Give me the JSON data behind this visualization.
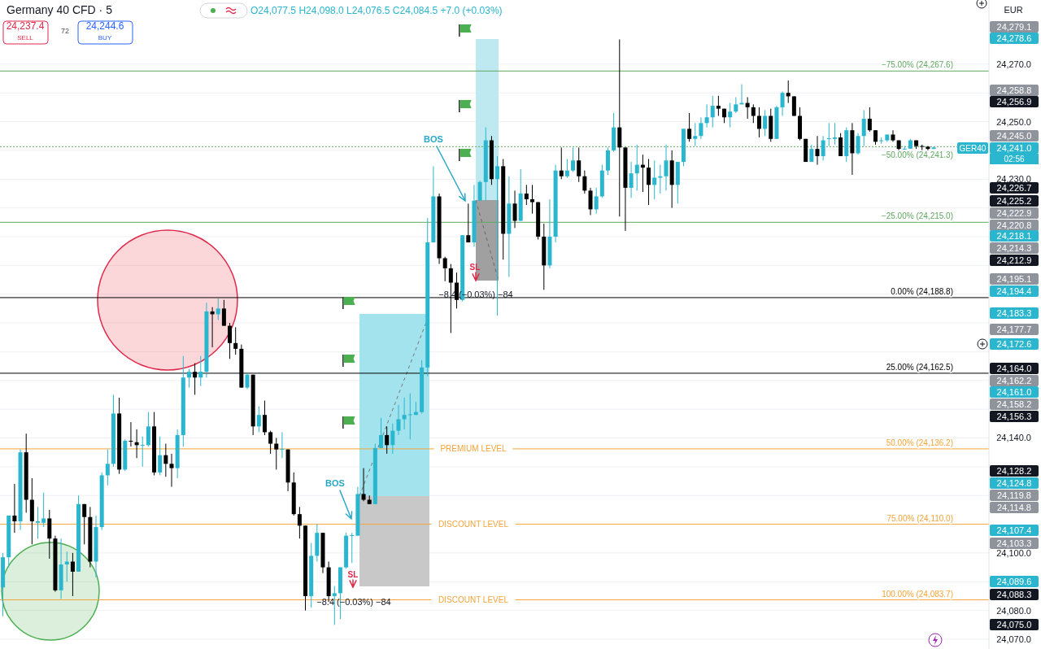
{
  "chart_data": {
    "type": "candlestick",
    "title": "Germany 40 CFD · 5",
    "subtitle": "O24,077.5 H24,098.0 L24,076.5 C24,084.5 +7.0 (+0.03%)",
    "categories": [
      null,
      null,
      null,
      null,
      null,
      null,
      null,
      null,
      null,
      null,
      null,
      null,
      null,
      null,
      null,
      null,
      null,
      null,
      null,
      null,
      null,
      null,
      null,
      null,
      null,
      null,
      null,
      null,
      null,
      null,
      null,
      null,
      null,
      null,
      null,
      null,
      null,
      null,
      null,
      null,
      null,
      null,
      null,
      null,
      null,
      null,
      null,
      null,
      null,
      null,
      null,
      null,
      null,
      null,
      null,
      null,
      null,
      null,
      null,
      null,
      null,
      null,
      null,
      null,
      null,
      null,
      null,
      null,
      null,
      null,
      null,
      null,
      null,
      null,
      null,
      null,
      null,
      null,
      null,
      null,
      null,
      null,
      null,
      null,
      null,
      null,
      null,
      null,
      null,
      null,
      null,
      null,
      null,
      null,
      null,
      null,
      null,
      null,
      null,
      null,
      null,
      null,
      null,
      null,
      null,
      null,
      null,
      null,
      null,
      null,
      null,
      null,
      null,
      null,
      null,
      null,
      null,
      null,
      null,
      null,
      null,
      null,
      null,
      null,
      null,
      null,
      null,
      null,
      null,
      null,
      null,
      null,
      null,
      null,
      null,
      null,
      null,
      null,
      null,
      null,
      null,
      null,
      null,
      null,
      null,
      null,
      null,
      null,
      null,
      null,
      null,
      null,
      null,
      null,
      null,
      null,
      null,
      null,
      null,
      null,
      null,
      null,
      null,
      null,
      null,
      null,
      null,
      null,
      null,
      null
    ],
    "ohlc": [
      [
        24088,
        24100,
        24078,
        24098.5
      ],
      [
        24098.5,
        24113,
        24095,
        24113
      ],
      [
        24113,
        24124,
        24107,
        24111
      ],
      [
        24111,
        24136,
        24108,
        24135
      ],
      [
        24135,
        24141.5,
        24114,
        24118.5
      ],
      [
        24118.5,
        24126,
        24103,
        24111
      ],
      [
        24110.5,
        24116,
        24105,
        24111
      ],
      [
        24110.5,
        24121,
        24109,
        24112
      ],
      [
        24112,
        24115,
        24098,
        24105
      ],
      [
        24105,
        24106,
        24086.5,
        24087
      ],
      [
        24087,
        24105,
        24084,
        24096
      ],
      [
        24096,
        24100.5,
        24090,
        24097
      ],
      [
        24097,
        24100,
        24085,
        24093.5
      ],
      [
        24093.5,
        24120,
        24093.5,
        24117
      ],
      [
        24117,
        24117,
        24103,
        24112.5
      ],
      [
        24112.5,
        24116,
        24095,
        24097
      ],
      [
        24097,
        24113,
        24091.5,
        24109
      ],
      [
        24109,
        24128,
        24108,
        24127
      ],
      [
        24127,
        24136,
        24123.5,
        24131
      ],
      [
        24131,
        24155,
        24130,
        24148.5
      ],
      [
        24148.5,
        24154,
        24127.5,
        24129
      ],
      [
        24129,
        24139.5,
        24128.5,
        24139
      ],
      [
        24139,
        24145.5,
        24137,
        24138.8
      ],
      [
        24138.5,
        24143,
        24133,
        24137.5
      ],
      [
        24137.5,
        24140.5,
        24130,
        24137.6
      ],
      [
        24137.5,
        24149,
        24137,
        24144
      ],
      [
        24144,
        24149,
        24127,
        24128
      ],
      [
        24128,
        24140.5,
        24127,
        24134
      ],
      [
        24134,
        24138,
        24126.5,
        24131
      ],
      [
        24131,
        24134.5,
        24123,
        24129.5
      ],
      [
        24129.5,
        24143,
        24126,
        24141
      ],
      [
        24141,
        24168.5,
        24137,
        24161
      ],
      [
        24161,
        24164,
        24157.5,
        24163
      ],
      [
        24163,
        24166,
        24155,
        24161
      ],
      [
        24161,
        24168.5,
        24158,
        24163
      ],
      [
        24163,
        24187,
        24161,
        24184
      ],
      [
        24184,
        24185.5,
        24171.5,
        24183
      ],
      [
        24183,
        24188.5,
        24181,
        24185
      ],
      [
        24185,
        24188,
        24179,
        24179
      ],
      [
        24179,
        24180,
        24167.5,
        24173
      ],
      [
        24173,
        24178.5,
        24169,
        24171
      ],
      [
        24171,
        24172.5,
        24157.5,
        24157.5
      ],
      [
        24157.5,
        24162.5,
        24157,
        24162
      ],
      [
        24162,
        24162,
        24141,
        24144
      ],
      [
        24144,
        24151,
        24142,
        24148
      ],
      [
        24148,
        24153,
        24141,
        24142
      ],
      [
        24142,
        24142.5,
        24134.5,
        24138
      ],
      [
        24138,
        24140,
        24129,
        24136
      ],
      [
        24136,
        24142,
        24133,
        24136.2
      ],
      [
        24136,
        24136,
        24121.5,
        24124.5
      ],
      [
        24124.5,
        24128,
        24113,
        24113.5
      ],
      [
        24113.5,
        24116,
        24105,
        24109.5
      ],
      [
        24109.5,
        24109.5,
        24080,
        24085
      ],
      [
        24085,
        24103.5,
        24081,
        24099
      ],
      [
        24099,
        24110,
        24097,
        24107
      ],
      [
        24107,
        24107,
        24093,
        24095
      ],
      [
        24095,
        24097,
        24083,
        24085
      ],
      [
        24085,
        24088.5,
        24075,
        24086
      ],
      [
        24086,
        24095,
        24077,
        24095
      ],
      [
        24095,
        24107,
        24094.5,
        24106
      ],
      [
        24106,
        24107,
        24096.5,
        24106.2
      ],
      [
        24106,
        24123,
        24106,
        24120.5
      ],
      [
        24120.5,
        24129.5,
        24118,
        24118.5
      ],
      [
        24118.5,
        24120,
        24117,
        24117
      ],
      [
        24117,
        24138,
        24117,
        24136.5
      ],
      [
        24136.5,
        24147,
        24136.5,
        24141
      ],
      [
        24141,
        24144,
        24134.5,
        24137.5
      ],
      [
        24137.5,
        24145,
        24134.5,
        24142.5
      ],
      [
        24142.5,
        24151.5,
        24141,
        24146.5
      ],
      [
        24146.5,
        24154,
        24143,
        24148
      ],
      [
        24148,
        24155.5,
        24139.5,
        24148.2
      ],
      [
        24148,
        24152.5,
        24148,
        24149
      ],
      [
        24149,
        24167,
        24148.5,
        24164.5
      ],
      [
        24164.5,
        24216.5,
        24161.5,
        24208
      ],
      [
        24208,
        24234.5,
        24208,
        24224
      ],
      [
        24224,
        24225,
        24200.5,
        24202.5
      ],
      [
        24202.5,
        24203,
        24194.5,
        24199
      ],
      [
        24199,
        24200.5,
        24176.5,
        24194
      ],
      [
        24194,
        24197.5,
        24185,
        24188
      ],
      [
        24188,
        24210.5,
        24187.5,
        24210.5
      ],
      [
        24210.5,
        24221.5,
        24208,
        24208
      ],
      [
        24208,
        24228,
        24206.5,
        24222.5
      ],
      [
        24222.5,
        24229.5,
        24222.5,
        24229
      ],
      [
        24229,
        24248,
        24222.5,
        24243.5
      ],
      [
        24243.5,
        24245,
        24228,
        24230
      ],
      [
        24230,
        24238,
        24182.5,
        24234.5
      ],
      [
        24234.5,
        24237,
        24202,
        24211
      ],
      [
        24211,
        24231,
        24196,
        24221.5
      ],
      [
        24221.5,
        24226,
        24213,
        24215.5
      ],
      [
        24215.5,
        24233.5,
        24215.5,
        24225
      ],
      [
        24225,
        24228,
        24221,
        24223
      ],
      [
        24223,
        24228,
        24218,
        24222
      ],
      [
        24222,
        24222,
        24209,
        24210
      ],
      [
        24210,
        24214.5,
        24191.5,
        24200
      ],
      [
        24200,
        24223,
        24199,
        24210
      ],
      [
        24210,
        24235,
        24208,
        24233
      ],
      [
        24233,
        24241,
        24230,
        24231
      ],
      [
        24231,
        24237,
        24230.5,
        24233
      ],
      [
        24233,
        24241,
        24232.5,
        24236.5
      ],
      [
        24236.5,
        24241,
        24229,
        24231
      ],
      [
        24231,
        24233,
        24225,
        24226
      ],
      [
        24226,
        24227,
        24217.5,
        24219.5
      ],
      [
        24219.5,
        24227,
        24218,
        24224
      ],
      [
        24224,
        24235,
        24223.5,
        24233
      ],
      [
        24233,
        24241,
        24231.5,
        24240
      ],
      [
        24240,
        24253,
        24239.5,
        24248
      ],
      [
        24248,
        24278.6,
        24217,
        24241
      ],
      [
        24241,
        24241,
        24212,
        24227
      ],
      [
        24227,
        24236,
        24223.5,
        24232
      ],
      [
        24232,
        24242,
        24226,
        24235
      ],
      [
        24235,
        24238.5,
        24225.5,
        24234
      ],
      [
        24234,
        24237,
        24221,
        24228
      ],
      [
        24228,
        24236.5,
        24223,
        24230.5
      ],
      [
        24230.5,
        24235,
        24225,
        24231
      ],
      [
        24231,
        24242,
        24226,
        24236.5
      ],
      [
        24236.5,
        24240,
        24220,
        24228
      ],
      [
        24228,
        24236,
        24221.5,
        24236
      ],
      [
        24236,
        24247.5,
        24234.5,
        24247.5
      ],
      [
        24247.5,
        24253,
        24243,
        24244
      ],
      [
        24244,
        24249.5,
        24241.5,
        24245
      ],
      [
        24245,
        24251.5,
        24244,
        24249.5
      ],
      [
        24249.5,
        24256,
        24248,
        24251.5
      ],
      [
        24251.5,
        24259,
        24248,
        24255.5
      ],
      [
        24255.5,
        24259,
        24252,
        24254.5
      ],
      [
        24254.5,
        24254.5,
        24249.5,
        24251.5
      ],
      [
        24251.5,
        24256.5,
        24248,
        24253.5
      ],
      [
        24253.5,
        24258.5,
        24253,
        24256
      ],
      [
        24256,
        24263,
        24256,
        24256.5
      ],
      [
        24256.5,
        24258.5,
        24251,
        24255
      ],
      [
        24255,
        24256,
        24249.5,
        24252
      ],
      [
        24252,
        24255,
        24244.5,
        24247.5
      ],
      [
        24247.5,
        24254,
        24245,
        24252
      ],
      [
        24252,
        24254.5,
        24243,
        24244
      ],
      [
        24244,
        24255.5,
        24244,
        24255
      ],
      [
        24255,
        24260.5,
        24252,
        24260
      ],
      [
        24260,
        24264.3,
        24256.5,
        24258.8
      ],
      [
        24258.8,
        24258.8,
        24252,
        24252
      ],
      [
        24252,
        24255,
        24243.5,
        24244
      ],
      [
        24244,
        24244,
        24236,
        24236
      ],
      [
        24236,
        24242,
        24236,
        24240.5
      ],
      [
        24240.5,
        24245,
        24235,
        24238
      ],
      [
        24238,
        24245,
        24236.5,
        24243.5
      ],
      [
        24244,
        24249.5,
        24241.5,
        24244.2
      ],
      [
        24244,
        24249.5,
        24242,
        24244.5
      ],
      [
        24244.5,
        24246,
        24238,
        24238
      ],
      [
        24238,
        24248,
        24236,
        24247
      ],
      [
        24247,
        24249.5,
        24231.5,
        24239
      ],
      [
        24239,
        24246,
        24238.5,
        24245
      ],
      [
        24245,
        24254,
        24241.5,
        24251
      ],
      [
        24251,
        24255,
        24246.5,
        24247
      ],
      [
        24247,
        24247,
        24242,
        24243
      ],
      [
        24243.3,
        24244.5,
        24242.3,
        24243.5
      ],
      [
        24243.5,
        24245.5,
        24243,
        24245.5
      ],
      [
        24245.5,
        24247,
        24243,
        24243.5
      ],
      [
        24243.5,
        24243.5,
        24240,
        24240.5
      ],
      [
        24240.5,
        24241.5,
        24240.2,
        24240.6
      ],
      [
        24240.6,
        24244,
        24240.5,
        24243.5
      ],
      [
        24243.5,
        24243.5,
        24240.5,
        24241.5
      ],
      [
        24241.5,
        24242,
        24240,
        24241.3
      ],
      [
        24241.3,
        24241.5,
        24240,
        24240.5
      ],
      [
        24240.5,
        24241.3,
        24240.5,
        24241
      ],
      null,
      null,
      null,
      null,
      null,
      null,
      null,
      null,
      null
    ],
    "colors": [
      "#29b6ce",
      "#29b6ce",
      "#000000",
      "#29b6ce",
      "#000000",
      "#000000",
      "#29b6ce",
      "#29b6ce",
      "#000000",
      "#000000",
      "#29b6ce",
      "#29b6ce",
      "#000000",
      "#29b6ce",
      "#000000",
      "#000000",
      "#29b6ce",
      "#29b6ce",
      "#29b6ce",
      "#29b6ce",
      "#000000",
      "#29b6ce",
      "#000000",
      "#000000",
      "#29b6ce",
      "#29b6ce",
      "#000000",
      "#29b6ce",
      "#000000",
      "#000000",
      "#29b6ce",
      "#29b6ce",
      "#29b6ce",
      "#000000",
      "#29b6ce",
      "#29b6ce",
      "#000000",
      "#29b6ce",
      "#000000",
      "#000000",
      "#000000",
      "#000000",
      "#29b6ce",
      "#000000",
      "#29b6ce",
      "#000000",
      "#000000",
      "#000000",
      "#29b6ce",
      "#000000",
      "#000000",
      "#000000",
      "#000000",
      "#29b6ce",
      "#29b6ce",
      "#000000",
      "#000000",
      "#29b6ce",
      "#29b6ce",
      "#29b6ce",
      "#29b6ce",
      "#29b6ce",
      "#000000",
      "#000000",
      "#29b6ce",
      "#29b6ce",
      "#000000",
      "#29b6ce",
      "#29b6ce",
      "#29b6ce",
      "#29b6ce",
      "#29b6ce",
      "#29b6ce",
      "#29b6ce",
      "#29b6ce",
      "#000000",
      "#000000",
      "#000000",
      "#000000",
      "#29b6ce",
      "#000000",
      "#29b6ce",
      "#29b6ce",
      "#29b6ce",
      "#000000",
      "#29b6ce",
      "#000000",
      "#29b6ce",
      "#000000",
      "#29b6ce",
      "#000000",
      "#000000",
      "#000000",
      "#000000",
      "#29b6ce",
      "#29b6ce",
      "#000000",
      "#29b6ce",
      "#29b6ce",
      "#000000",
      "#000000",
      "#000000",
      "#29b6ce",
      "#29b6ce",
      "#29b6ce",
      "#29b6ce",
      "#000000",
      "#000000",
      "#29b6ce",
      "#29b6ce",
      "#000000",
      "#000000",
      "#29b6ce",
      "#29b6ce",
      "#29b6ce",
      "#000000",
      "#29b6ce",
      "#29b6ce",
      "#000000",
      "#29b6ce",
      "#29b6ce",
      "#29b6ce",
      "#29b6ce",
      "#000000",
      "#000000",
      "#29b6ce",
      "#29b6ce",
      "#29b6ce",
      "#000000",
      "#000000",
      "#000000",
      "#29b6ce",
      "#000000",
      "#29b6ce",
      "#29b6ce",
      "#000000",
      "#000000",
      "#000000",
      "#000000",
      "#29b6ce",
      "#000000",
      "#29b6ce",
      "#29b6ce",
      "#29b6ce",
      "#000000",
      "#29b6ce",
      "#000000",
      "#29b6ce",
      "#29b6ce",
      "#000000",
      "#000000",
      "#29b6ce",
      "#29b6ce",
      "#000000",
      "#000000",
      "#29b6ce",
      "#29b6ce",
      "#000000",
      "#000000",
      "#000000",
      "#29b6ce",
      null,
      null,
      null,
      null,
      null,
      null,
      null,
      null,
      null
    ],
    "ylim": [
      24066.6,
      24292.3
    ],
    "yticks": [
      {
        "value": 24070,
        "label": "24,070.0"
      },
      {
        "value": 24080,
        "label": "24,080.0"
      },
      {
        "value": 24090,
        "label": null
      },
      {
        "value": 24100,
        "label": "24,100.0"
      },
      {
        "value": 24110,
        "label": null
      },
      {
        "value": 24120,
        "label": null
      },
      {
        "value": 24130,
        "label": null
      },
      {
        "value": 24140,
        "label": "24,140.0"
      },
      {
        "value": 24150,
        "label": null
      },
      {
        "value": 24160,
        "label": null
      },
      {
        "value": 24170,
        "label": null
      },
      {
        "value": 24180,
        "label": null
      },
      {
        "value": 24190,
        "label": null
      },
      {
        "value": 24200,
        "label": null
      },
      {
        "value": 24210,
        "label": null
      },
      {
        "value": 24220,
        "label": null
      },
      {
        "value": 24230,
        "label": "24,230.0"
      },
      {
        "value": 24240,
        "label": null
      },
      {
        "value": 24250,
        "label": "24,250.0"
      },
      {
        "value": 24260,
        "label": null
      },
      {
        "value": 24270,
        "label": "24,270.0"
      }
    ],
    "grid": "y",
    "ref_lines": [
      {
        "axis": "y",
        "value": 24267.6,
        "label": "−75.00% (24,267.6)",
        "color": "#5fa85f"
      },
      {
        "axis": "y",
        "value": 24241.3,
        "label": "−50.00% (24,241.3)",
        "color": "#5fa85f",
        "line_style": "dotted"
      },
      {
        "axis": "y",
        "value": 24215.0,
        "label": "−25.00% (24,215.0)",
        "color": "#5fa85f"
      },
      {
        "axis": "y",
        "value": 24188.8,
        "label": "0.00% (24,188.8)",
        "color": "#000000"
      },
      {
        "axis": "y",
        "value": 24162.5,
        "label": "25.00% (24,162.5)",
        "color": "#000000"
      },
      {
        "axis": "y",
        "value": 24136.2,
        "label": "50.00% (24,136.2)",
        "color": "#f5a43a"
      },
      {
        "axis": "y",
        "value": 24110.0,
        "label": "75.00% (24,110.0)",
        "color": "#f5a43a"
      },
      {
        "axis": "y",
        "value": 24083.7,
        "label": "100.00% (24,083.7)",
        "color": "#f5a43a"
      }
    ],
    "annotations": [
      "24,237.4",
      "SELL",
      "72",
      "24,244.6",
      "BUY",
      "EUR",
      "BOS",
      "BOS",
      "SL",
      "SL",
      "−8.4 (−0.03%) −84",
      "−8.4 (−0.03%) −84",
      {
        "text": "PREMIUM LEVEL",
        "y": 24136.2
      },
      {
        "text": "DISCOUNT LEVEL",
        "y": 24110.0
      },
      {
        "text": "DISCOUNT LEVEL",
        "y": 24083.7
      },
      "GER40",
      "02:56",
      "24,279.1",
      "24,278.6",
      "24,258.8",
      "24,256.9",
      "24,245.0",
      "24,241.0",
      "24,226.7",
      "24,225.2",
      "24,222.9",
      "24,220.8",
      "24,218.1",
      "24,214.3",
      "24,212.9",
      "24,195.1",
      "24,194.4",
      "24,183.3",
      "24,177.7",
      "24,172.6",
      "24,164.0",
      "24,162.2",
      "24,161.0",
      "24,158.2",
      "24,156.3",
      "24,128.2",
      "24,124.8",
      "24,119.8",
      "24,114.8",
      "24,107.4",
      "24,103.3",
      "24,089.6",
      "24,088.3",
      "24,075.0"
    ]
  }
}
